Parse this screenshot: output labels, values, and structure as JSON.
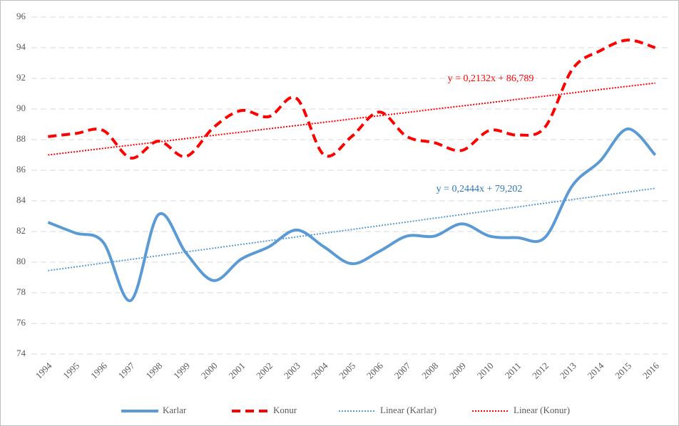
{
  "chart_data": {
    "type": "line",
    "categories": [
      "1994",
      "1995",
      "1996",
      "1997",
      "1998",
      "1999",
      "2000",
      "2001",
      "2002",
      "2003",
      "2004",
      "2005",
      "2006",
      "2007",
      "2008",
      "2009",
      "2010",
      "2011",
      "2012",
      "2013",
      "2014",
      "2015",
      "2016"
    ],
    "series": [
      {
        "name": "Karlar",
        "color": "#5b9bd5",
        "style": "solid",
        "smooth": true,
        "values": [
          82.6,
          81.9,
          81.3,
          77.5,
          83.1,
          80.6,
          78.8,
          80.2,
          81.0,
          82.1,
          81.0,
          79.9,
          80.7,
          81.7,
          81.7,
          82.5,
          81.7,
          81.6,
          81.6,
          85.0,
          86.6,
          88.7,
          87.0
        ]
      },
      {
        "name": "Konur",
        "color": "#ff0000",
        "style": "dashed",
        "smooth": true,
        "values": [
          88.2,
          88.4,
          88.6,
          86.8,
          87.9,
          86.9,
          88.8,
          89.9,
          89.5,
          90.7,
          87.0,
          88.2,
          89.8,
          88.2,
          87.8,
          87.3,
          88.6,
          88.3,
          88.8,
          92.6,
          93.8,
          94.5,
          94.0
        ]
      },
      {
        "name": "Linear (Karlar)",
        "color": "#5b9bd5",
        "style": "dotted",
        "smooth": false,
        "values": [
          79.45,
          79.69,
          79.94,
          80.18,
          80.42,
          80.67,
          80.91,
          81.16,
          81.4,
          81.65,
          81.89,
          82.13,
          82.38,
          82.62,
          82.87,
          83.11,
          83.36,
          83.6,
          83.85,
          84.09,
          84.33,
          84.58,
          84.82
        ]
      },
      {
        "name": "Linear (Konur)",
        "color": "#ff0000",
        "style": "dotted",
        "smooth": false,
        "values": [
          87.0,
          87.21,
          87.43,
          87.64,
          87.85,
          88.07,
          88.28,
          88.49,
          88.71,
          88.92,
          89.13,
          89.35,
          89.56,
          89.77,
          89.99,
          90.2,
          90.41,
          90.63,
          90.84,
          91.05,
          91.27,
          91.48,
          91.69
        ]
      }
    ],
    "annotations": [
      {
        "text": "y = 0,2132x + 86,789",
        "color": "#ff0000"
      },
      {
        "text": "y = 0,2444x + 79,202",
        "color": "#2e75b6"
      }
    ],
    "ylim": [
      74,
      96
    ],
    "yticks": [
      74,
      76,
      78,
      80,
      82,
      84,
      86,
      88,
      90,
      92,
      94,
      96
    ],
    "grid": true,
    "legend": "bottom"
  }
}
